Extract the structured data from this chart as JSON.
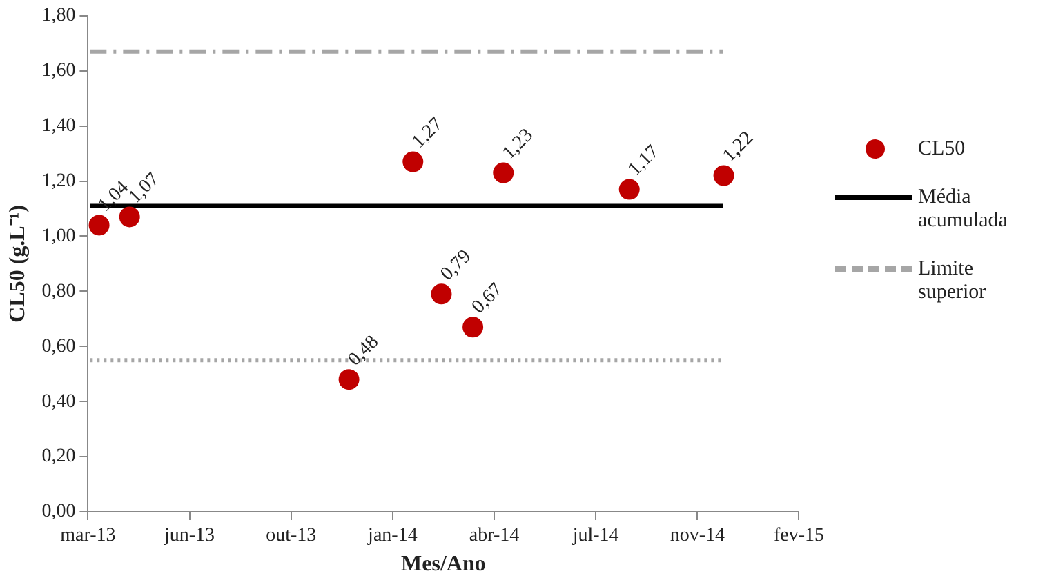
{
  "chart_data": {
    "type": "scatter",
    "xlabel": "Mes/Ano",
    "ylabel": "CL50 (g.L⁻¹)",
    "x": [
      "2013-03-27",
      "2013-04-26",
      "2013-11-28",
      "2014-01-30",
      "2014-02-27",
      "2014-03-30",
      "2014-04-29",
      "2014-08-31",
      "2014-12-02"
    ],
    "series": [
      {
        "name": "CL50",
        "color": "#c00000",
        "marker": "circle",
        "values": [
          1.04,
          1.07,
          0.48,
          1.27,
          0.79,
          0.67,
          1.23,
          1.17,
          1.22
        ],
        "value_labels": [
          "1,04",
          "1,07",
          "0,48",
          "1,27",
          "0,79",
          "0,67",
          "1,23",
          "1,17",
          "1,22"
        ]
      },
      {
        "name": "Média acumulada",
        "type": "line",
        "color": "#000000",
        "line_style": "solid",
        "marker": "none",
        "x": [
          "2013-03-18",
          "2014-12-01"
        ],
        "values": [
          1.11,
          1.11
        ]
      },
      {
        "name": "Limite superior",
        "type": "line",
        "color": "#a6a6a6",
        "line_style": "dashdot",
        "marker": "none",
        "x": [
          "2013-03-18",
          "2014-12-01"
        ],
        "values": [
          1.67,
          1.67
        ]
      },
      {
        "type": "line",
        "color": "#a6a6a6",
        "line_style": "dotted",
        "marker": "none",
        "x": [
          "2013-03-18",
          "2014-12-01"
        ],
        "values": [
          0.55,
          0.55
        ]
      }
    ],
    "xlim": [
      "2013-03-16",
      "2015-02-14"
    ],
    "xticks": [
      {
        "value": "2013-03-16",
        "label": "mar-13"
      },
      {
        "value": "2013-06-24",
        "label": "jun-13"
      },
      {
        "value": "2013-10-02",
        "label": "out-13"
      },
      {
        "value": "2014-01-10",
        "label": "jan-14"
      },
      {
        "value": "2014-04-20",
        "label": "abr-14"
      },
      {
        "value": "2014-07-29",
        "label": "jul-14"
      },
      {
        "value": "2014-11-06",
        "label": "nov-14"
      },
      {
        "value": "2015-02-14",
        "label": "fev-15"
      }
    ],
    "ylim": [
      0,
      1.8
    ],
    "yticks": [
      {
        "value": 0,
        "label": "0,00"
      },
      {
        "value": 0.2,
        "label": "0,20"
      },
      {
        "value": 0.4,
        "label": "0,40"
      },
      {
        "value": 0.6,
        "label": "0,60"
      },
      {
        "value": 0.8,
        "label": "0,80"
      },
      {
        "value": 1.0,
        "label": "1,00"
      },
      {
        "value": 1.2,
        "label": "1,20"
      },
      {
        "value": 1.4,
        "label": "1,40"
      },
      {
        "value": 1.6,
        "label": "1,60"
      },
      {
        "value": 1.8,
        "label": "1,80"
      }
    ],
    "grid": false,
    "legend": "right"
  }
}
